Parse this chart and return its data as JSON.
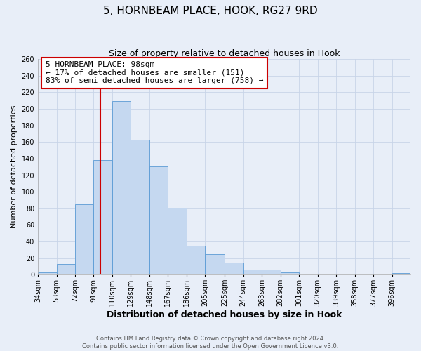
{
  "title": "5, HORNBEAM PLACE, HOOK, RG27 9RD",
  "subtitle": "Size of property relative to detached houses in Hook",
  "xlabel": "Distribution of detached houses by size in Hook",
  "ylabel": "Number of detached properties",
  "bar_color": "#c5d8f0",
  "bar_edge_color": "#5b9bd5",
  "grid_color": "#c8d4e8",
  "background_color": "#e8eef8",
  "vline_x": 98,
  "vline_color": "#cc0000",
  "annotation_line1": "5 HORNBEAM PLACE: 98sqm",
  "annotation_line2": "← 17% of detached houses are smaller (151)",
  "annotation_line3": "83% of semi-detached houses are larger (758) →",
  "annotation_box_color": "white",
  "annotation_box_edge": "#cc0000",
  "bin_edges": [
    34,
    53,
    72,
    91,
    110,
    129,
    148,
    167,
    186,
    205,
    225,
    244,
    263,
    282,
    301,
    320,
    339,
    358,
    377,
    396,
    415
  ],
  "bin_heights": [
    3,
    13,
    85,
    138,
    209,
    163,
    131,
    81,
    35,
    25,
    15,
    6,
    6,
    3,
    0,
    1,
    0,
    0,
    0,
    2
  ],
  "ylim": [
    0,
    260
  ],
  "yticks": [
    0,
    20,
    40,
    60,
    80,
    100,
    120,
    140,
    160,
    180,
    200,
    220,
    240,
    260
  ],
  "footer_line1": "Contains HM Land Registry data © Crown copyright and database right 2024.",
  "footer_line2": "Contains public sector information licensed under the Open Government Licence v3.0.",
  "title_fontsize": 11,
  "subtitle_fontsize": 9,
  "xlabel_fontsize": 9,
  "ylabel_fontsize": 8,
  "tick_fontsize": 7,
  "annotation_fontsize": 8,
  "footer_fontsize": 6
}
